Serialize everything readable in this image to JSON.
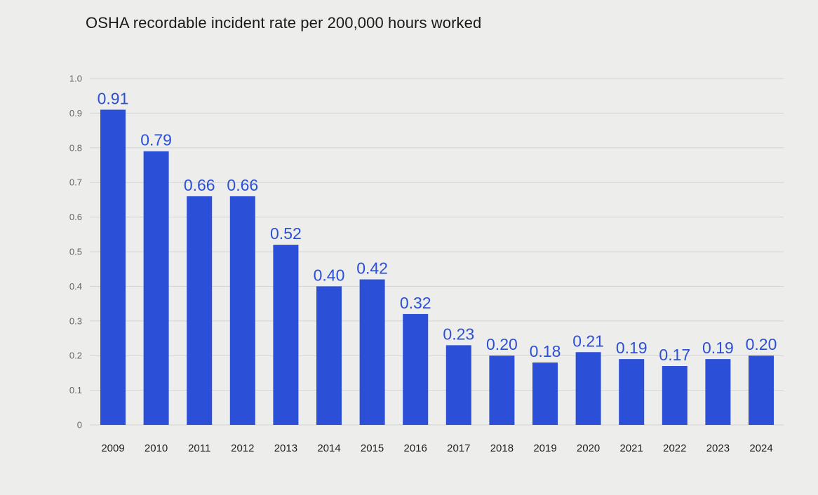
{
  "chart_data": {
    "type": "bar",
    "title": "OSHA recordable incident rate per 200,000 hours worked",
    "categories": [
      "2009",
      "2010",
      "2011",
      "2012",
      "2013",
      "2014",
      "2015",
      "2016",
      "2017",
      "2018",
      "2019",
      "2020",
      "2021",
      "2022",
      "2023",
      "2024"
    ],
    "values": [
      0.91,
      0.79,
      0.66,
      0.66,
      0.52,
      0.4,
      0.42,
      0.32,
      0.23,
      0.2,
      0.18,
      0.21,
      0.19,
      0.17,
      0.19,
      0.2
    ],
    "data_labels": [
      "0.91",
      "0.79",
      "0.66",
      "0.66",
      "0.52",
      "0.40",
      "0.42",
      "0.32",
      "0.23",
      "0.20",
      "0.18",
      "0.21",
      "0.19",
      "0.17",
      "0.19",
      "0.20"
    ],
    "y_ticks": [
      "0",
      "0.1",
      "0.2",
      "0.3",
      "0.4",
      "0.5",
      "0.6",
      "0.7",
      "0.8",
      "0.9",
      "1.0"
    ],
    "ylim": [
      0,
      1.0
    ],
    "grid": true,
    "legend": "none",
    "bar_color": "#2c4fd8",
    "label_color": "#2c4fd8"
  }
}
